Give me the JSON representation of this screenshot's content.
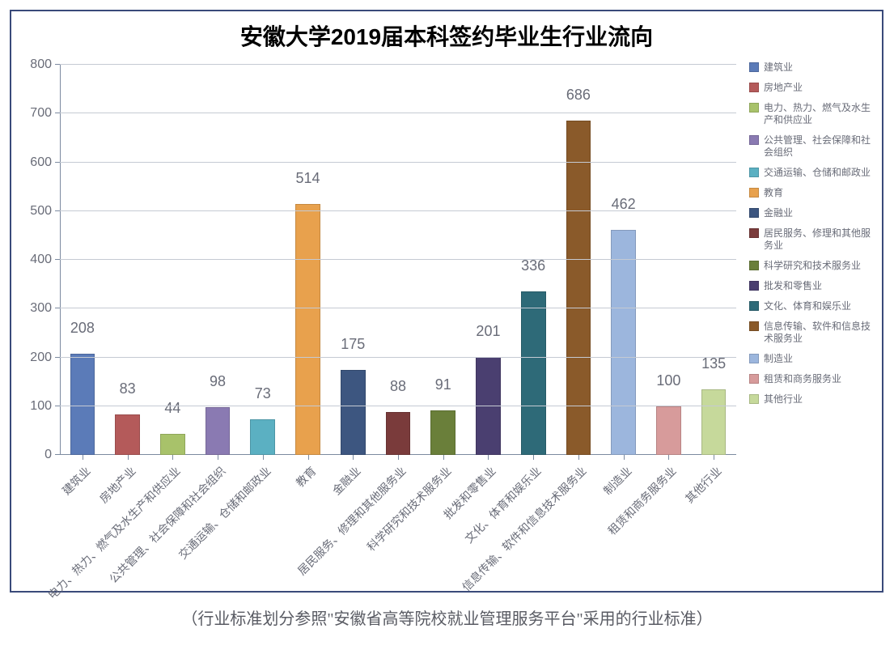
{
  "chart": {
    "type": "bar",
    "title": "安徽大学2019届本科签约毕业生行业流向",
    "title_fontsize": 28,
    "title_color": "#000000",
    "background_color": "#ffffff",
    "border_color": "#3a4a7a",
    "grid_color": "#c5cad3",
    "axis_color": "#7c8aa0",
    "tick_label_color": "#696c78",
    "tick_label_fontsize": 16,
    "value_label_fontsize": 18,
    "x_label_fontsize": 14,
    "x_label_rotation_deg": -45,
    "ylim": [
      0,
      800
    ],
    "ytick_step": 100,
    "bar_width_ratio": 0.55,
    "series": [
      {
        "label": "建筑业",
        "value": 208,
        "color": "#5b7bb8"
      },
      {
        "label": "房地产业",
        "value": 83,
        "color": "#b45a5a"
      },
      {
        "label": "电力、热力、燃气及水生产和供应业",
        "value": 44,
        "color": "#a8c26a"
      },
      {
        "label": "公共管理、社会保障和社会组织",
        "value": 98,
        "color": "#8a7ab2"
      },
      {
        "label": "交通运输、仓储和邮政业",
        "value": 73,
        "color": "#5bb0c2"
      },
      {
        "label": "教育",
        "value": 514,
        "color": "#e8a14d"
      },
      {
        "label": "金融业",
        "value": 175,
        "color": "#3d5680"
      },
      {
        "label": "居民服务、修理和其他服务业",
        "value": 88,
        "color": "#7a3b3b"
      },
      {
        "label": "科学研究和技术服务业",
        "value": 91,
        "color": "#6a7f3a"
      },
      {
        "label": "批发和零售业",
        "value": 201,
        "color": "#4a3f70"
      },
      {
        "label": "文化、体育和娱乐业",
        "value": 336,
        "color": "#2e6a78"
      },
      {
        "label": "信息传输、软件和信息技术服务业",
        "value": 686,
        "color": "#8a5a2a"
      },
      {
        "label": "制造业",
        "value": 462,
        "color": "#9cb6dd"
      },
      {
        "label": "租赁和商务服务业",
        "value": 100,
        "color": "#d79b9b"
      },
      {
        "label": "其他行业",
        "value": 135,
        "color": "#c6d99b"
      }
    ]
  },
  "footnote": "（行业标准划分参照\"安徽省高等院校就业管理服务平台\"采用的行业标准）",
  "footnote_fontsize": 20,
  "footnote_color": "#595b63"
}
